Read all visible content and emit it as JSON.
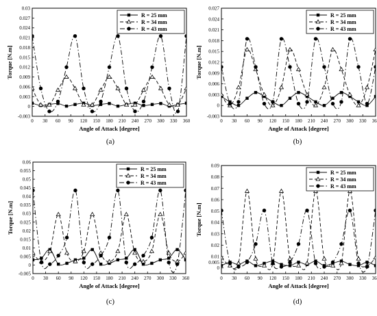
{
  "chart_data": [
    {
      "type": "line",
      "panel_label": "(a)",
      "xlabel": "Angle of Attack [degree]",
      "ylabel": "Torque [N.m]",
      "xlim": [
        0,
        360
      ],
      "ylim": [
        -0.003,
        0.03
      ],
      "xticks": [
        0,
        30,
        60,
        90,
        120,
        150,
        180,
        210,
        240,
        270,
        300,
        330,
        360
      ],
      "yticks": [
        -0.003,
        0,
        0.003,
        0.006,
        0.009,
        0.012,
        0.015,
        0.018,
        0.021,
        0.024,
        0.027,
        0.03
      ],
      "ytick_labels": [
        "-0.003",
        "0",
        "0.003",
        "0.006",
        "0.009",
        "0.012",
        "0.015",
        "0.018",
        "0.021",
        "0.024",
        "0.027",
        "0.03"
      ],
      "x": [
        0,
        20,
        40,
        60,
        80,
        100,
        120,
        140,
        160,
        180,
        200,
        220,
        240,
        260,
        280,
        300,
        320,
        340,
        360
      ],
      "legend_position": "top-right",
      "series": [
        {
          "name": "R = 25 mm",
          "marker": "square",
          "dash": "solid",
          "values": [
            0.001,
            0.0003,
            0.0006,
            0.0009,
            0.0001,
            0.0006,
            0.001,
            0.0003,
            0.0006,
            0.0009,
            0.0001,
            0.0006,
            0.001,
            0.0003,
            0.0006,
            0.0009,
            0.0001,
            0.0006,
            0.001
          ]
        },
        {
          "name": "R = 34 mm",
          "marker": "triangle",
          "dash": "dashed",
          "values": [
            0.0055,
            0.0005,
            0.0005,
            0.005,
            0.009,
            0.0055,
            0.0005,
            0.0005,
            0.005,
            0.009,
            0.0055,
            0.0005,
            0.0005,
            0.005,
            0.009,
            0.0055,
            0.0005,
            0.0005,
            0.0055
          ]
        },
        {
          "name": "R = 43 mm",
          "marker": "circle",
          "dash": "dashdot",
          "values": [
            0.0215,
            0.0055,
            -0.0015,
            0.0015,
            0.012,
            0.0215,
            0.0055,
            -0.0015,
            0.0015,
            0.012,
            0.0215,
            0.0055,
            -0.0015,
            0.0015,
            0.012,
            0.0215,
            0.0055,
            -0.0015,
            0.0215
          ]
        }
      ]
    },
    {
      "type": "line",
      "panel_label": "(b)",
      "xlabel": "Angle of Attack [degree]",
      "ylabel": "Torque [N.m]",
      "xlim": [
        0,
        360
      ],
      "ylim": [
        -0.003,
        0.027
      ],
      "xticks": [
        0,
        30,
        60,
        90,
        120,
        150,
        180,
        210,
        240,
        270,
        300,
        330,
        360
      ],
      "yticks": [
        -0.003,
        0,
        0.003,
        0.006,
        0.009,
        0.012,
        0.015,
        0.018,
        0.021,
        0.024,
        0.027
      ],
      "ytick_labels": [
        "-0.003",
        "0",
        "0.003",
        "0.006",
        "0.009",
        "0.012",
        "0.015",
        "0.018",
        "0.021",
        "0.024",
        "0.027"
      ],
      "x": [
        0,
        20,
        40,
        60,
        80,
        100,
        120,
        140,
        160,
        180,
        200,
        220,
        240,
        260,
        280,
        300,
        320,
        340,
        360
      ],
      "legend_position": "top-right",
      "series": [
        {
          "name": "R = 25 mm",
          "marker": "square",
          "dash": "solid",
          "values": [
            0.0025,
            0.001,
            0.0,
            0.002,
            0.0036,
            0.0025,
            0.001,
            0.0,
            0.002,
            0.0036,
            0.0025,
            0.001,
            0.0,
            0.002,
            0.0036,
            0.0025,
            0.001,
            0.0,
            0.0025
          ]
        },
        {
          "name": "R = 34 mm",
          "marker": "triangle",
          "dash": "dashed",
          "values": [
            0.003,
            0.0,
            0.005,
            0.0155,
            0.01,
            0.003,
            0.0,
            0.005,
            0.0155,
            0.01,
            0.003,
            0.0,
            0.005,
            0.0155,
            0.01,
            0.003,
            0.0,
            0.005,
            0.0155
          ]
        },
        {
          "name": "R = 43 mm",
          "marker": "circle",
          "dash": "dashdot",
          "values": [
            0.0107,
            0.0005,
            0.001,
            0.0185,
            0.0107,
            0.0005,
            0.001,
            0.0185,
            0.0107,
            0.0005,
            0.001,
            0.0185,
            0.0107,
            0.0005,
            0.001,
            0.0185,
            0.0107,
            0.0005,
            0.0107
          ]
        }
      ]
    },
    {
      "type": "line",
      "panel_label": "(c)",
      "xlabel": "Angle of Attack [degree]",
      "ylabel": "Torque [N.m]",
      "xlim": [
        0,
        360
      ],
      "ylim": [
        -0.005,
        0.06
      ],
      "xticks": [
        0,
        30,
        60,
        90,
        120,
        150,
        180,
        210,
        240,
        270,
        300,
        330,
        360
      ],
      "yticks": [
        -0.005,
        0,
        0.005,
        0.01,
        0.015,
        0.02,
        0.025,
        0.03,
        0.035,
        0.04,
        0.045,
        0.05,
        0.055,
        0.06
      ],
      "ytick_labels": [
        "-0.005",
        "0",
        "0.005",
        "0.01",
        "0.015",
        "0.02",
        "0.025",
        "0.03",
        "0.035",
        "0.04",
        "0.045",
        "0.05",
        "0.055",
        "0.06"
      ],
      "x": [
        0,
        20,
        40,
        60,
        80,
        100,
        120,
        140,
        160,
        180,
        200,
        220,
        240,
        260,
        280,
        300,
        320,
        340,
        360
      ],
      "legend_position": "top-right",
      "series": [
        {
          "name": "R = 25 mm",
          "marker": "square",
          "dash": "solid",
          "values": [
            0.003,
            0.004,
            0.009,
            0.0005,
            0.001,
            0.003,
            0.004,
            0.009,
            0.0005,
            0.001,
            0.003,
            0.004,
            0.009,
            0.0005,
            0.001,
            0.003,
            0.004,
            0.009,
            0.003
          ]
        },
        {
          "name": "R = 34 mm",
          "marker": "triangle",
          "dash": "dashed",
          "values": [
            0.007,
            0.002,
            0.008,
            0.0295,
            0.007,
            0.002,
            0.008,
            0.0295,
            0.007,
            0.002,
            0.008,
            0.0295,
            0.007,
            0.002,
            0.008,
            0.0295,
            0.007,
            0.002,
            0.007
          ]
        },
        {
          "name": "R = 43 mm",
          "marker": "circle",
          "dash": "dashdot",
          "values": [
            0.0435,
            0.0015,
            0.0005,
            0.0055,
            0.016,
            0.0435,
            0.0015,
            0.0005,
            0.0055,
            0.016,
            0.0435,
            0.0015,
            0.0005,
            0.0055,
            0.016,
            0.0435,
            0.0015,
            0.0005,
            0.0435
          ]
        }
      ]
    },
    {
      "type": "line",
      "panel_label": "(d)",
      "xlabel": "Angle of Attack [degree]",
      "ylabel": "Torque [N.m]",
      "xlim": [
        0,
        360
      ],
      "ylim": [
        -0.005,
        0.09
      ],
      "xticks": [
        0,
        30,
        60,
        90,
        120,
        150,
        180,
        210,
        240,
        270,
        300,
        330,
        360
      ],
      "yticks": [
        0,
        0.01,
        0.02,
        0.03,
        0.04,
        0.05,
        0.06,
        0.07,
        0.08,
        0.09
      ],
      "ytick_labels": [
        "0",
        "0.01",
        "0.02",
        "0.03",
        "0.04",
        "0.05",
        "0.06",
        "0.07",
        "0.08",
        "0.09"
      ],
      "extra_yticks": [
        0.005
      ],
      "extra_ytick_labels": [
        "0.005"
      ],
      "x": [
        0,
        20,
        40,
        60,
        80,
        100,
        120,
        140,
        160,
        180,
        200,
        220,
        240,
        260,
        280,
        300,
        320,
        340,
        360
      ],
      "legend_position": "top-right",
      "series": [
        {
          "name": "R = 25 mm",
          "marker": "square",
          "dash": "solid",
          "values": [
            0.002,
            0.005,
            0.003,
            0.006,
            0.002,
            0.004,
            0.006,
            0.003,
            0.002,
            0.005,
            0.003,
            0.006,
            0.002,
            0.004,
            0.006,
            0.003,
            0.002,
            0.005,
            0.002
          ]
        },
        {
          "name": "R = 34 mm",
          "marker": "triangle",
          "dash": "dashed",
          "values": [
            0.009,
            0.002,
            0.004,
            0.0675,
            0.008,
            0.002,
            0.004,
            0.0675,
            0.008,
            0.002,
            0.004,
            0.0675,
            0.008,
            0.002,
            0.004,
            0.0675,
            0.008,
            0.002,
            0.009
          ]
        },
        {
          "name": "R = 43 mm",
          "marker": "circle",
          "dash": "dashdot",
          "values": [
            0.0505,
            0.004,
            0.001,
            0.005,
            0.021,
            0.0505,
            0.004,
            0.001,
            0.005,
            0.021,
            0.0505,
            0.004,
            0.001,
            0.005,
            0.021,
            0.0505,
            0.004,
            0.001,
            0.0505
          ]
        }
      ]
    }
  ]
}
